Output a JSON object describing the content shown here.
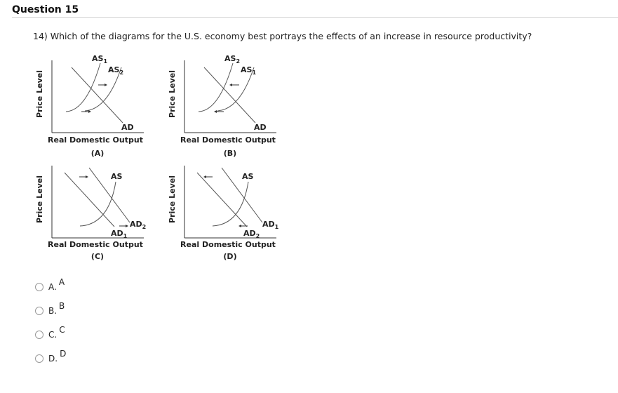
{
  "question": {
    "header": "Question 15",
    "text": "14) Which of the diagrams for the U.S. economy best portrays the effects of an increase in resource productivity?"
  },
  "diagrams": {
    "A": {
      "ylabel": "Price Level",
      "xlabel": "Real Domestic Output",
      "caption": "(A)",
      "curve1": "AS",
      "curve1_sub": "1",
      "curve2": "AS",
      "curve2_sub": "2",
      "demand": "AD"
    },
    "B": {
      "ylabel": "Price Level",
      "xlabel": "Real Domestic Output",
      "caption": "(B)",
      "curve1": "AS",
      "curve1_sub": "2",
      "curve2": "AS",
      "curve2_sub": "1",
      "demand": "AD"
    },
    "C": {
      "ylabel": "Price Level",
      "xlabel": "Real Domestic Output",
      "caption": "(C)",
      "supply": "AS",
      "d1": "AD",
      "d1_sub": "2",
      "d2": "AD",
      "d2_sub": "1"
    },
    "D": {
      "ylabel": "Price Level",
      "xlabel": "Real Domestic Output",
      "caption": "(D)",
      "supply": "AS",
      "d1": "AD",
      "d1_sub": "1",
      "d2": "AD",
      "d2_sub": "2"
    }
  },
  "options": [
    {
      "letter": "A.",
      "text": "A"
    },
    {
      "letter": "B.",
      "text": "B"
    },
    {
      "letter": "C.",
      "text": "C"
    },
    {
      "letter": "D.",
      "text": "D"
    }
  ]
}
